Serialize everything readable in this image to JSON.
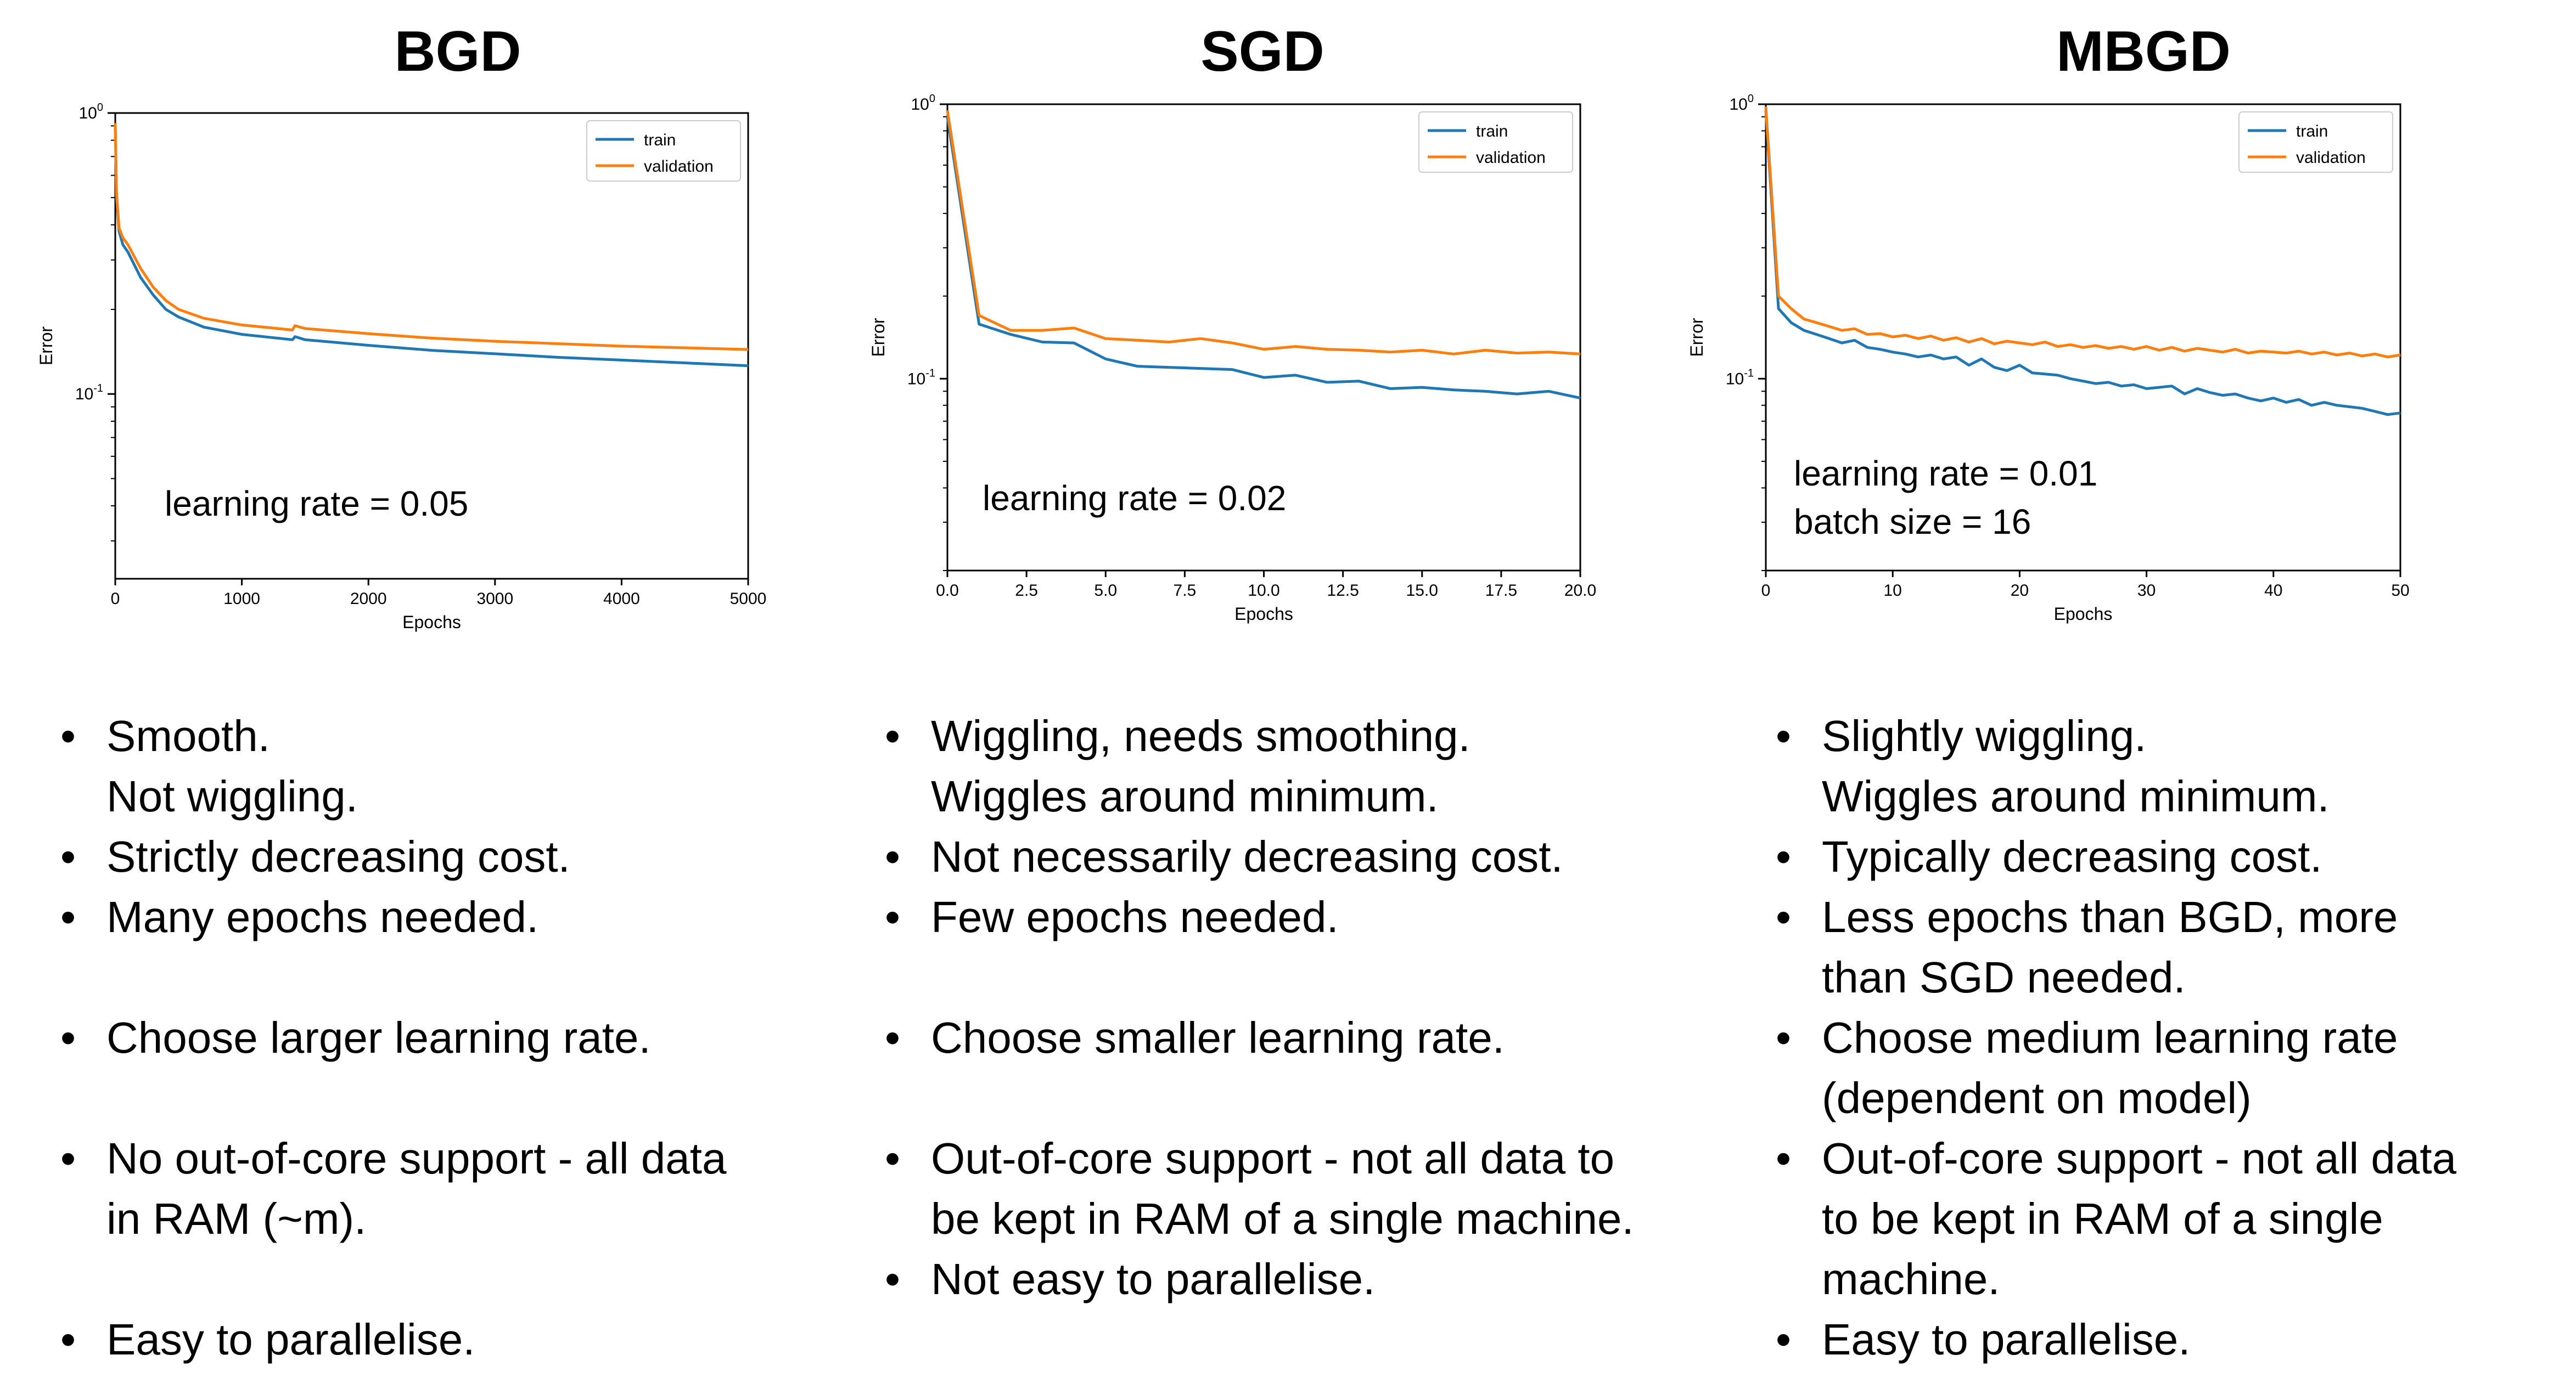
{
  "colors": {
    "train": "#1f77b4",
    "validation": "#ff7f0e"
  },
  "columns": [
    {
      "title": "BGD",
      "bullets": [
        {
          "text": "Smooth.\nNot wiggling.",
          "gap": false
        },
        {
          "text": "Strictly decreasing cost.",
          "gap": false
        },
        {
          "text": "Many epochs needed.",
          "gap": false
        },
        {
          "text": "Choose larger learning rate.",
          "gap": true
        },
        {
          "text": "No out-of-core support - all data\nin RAM (~m).",
          "gap": true
        },
        {
          "text": "Easy to parallelise.",
          "gap": true
        }
      ]
    },
    {
      "title": "SGD",
      "bullets": [
        {
          "text": "Wiggling, needs smoothing.\nWiggles around minimum.",
          "gap": false
        },
        {
          "text": "Not necessarily decreasing cost.",
          "gap": false
        },
        {
          "text": "Few epochs needed.",
          "gap": false
        },
        {
          "text": "Choose smaller learning rate.",
          "gap": true
        },
        {
          "text": "Out-of-core support - not all data to\nbe kept in RAM of a single machine.",
          "gap": true
        },
        {
          "text": "Not easy to parallelise.",
          "gap": false
        }
      ]
    },
    {
      "title": "MBGD",
      "bullets": [
        {
          "text": "Slightly wiggling.\nWiggles around minimum.",
          "gap": false
        },
        {
          "text": "Typically decreasing cost.",
          "gap": false
        },
        {
          "text": "Less epochs than BGD, more\nthan SGD needed.",
          "gap": false
        },
        {
          "text": "Choose medium learning rate\n(dependent on model)",
          "gap": false
        },
        {
          "text": "Out-of-core support - not all data\nto be kept in RAM of a single\nmachine.",
          "gap": false
        },
        {
          "text": "Easy to parallelise.",
          "gap": false
        }
      ]
    }
  ],
  "chart_data": [
    {
      "type": "line",
      "xlabel": "Epochs",
      "ylabel": "Error",
      "yscale": "log",
      "xlim": [
        0,
        5000
      ],
      "ylim": [
        0.022,
        1.0
      ],
      "xticks": [
        0,
        1000,
        2000,
        3000,
        4000,
        5000
      ],
      "xtick_labels": [
        "0",
        "1000",
        "2000",
        "3000",
        "4000",
        "5000"
      ],
      "ytick_labels": [
        "10^0",
        "10^-1"
      ],
      "legend": "top-right",
      "annotation": "learning rate = 0.05",
      "series": [
        {
          "name": "train",
          "x": [
            0,
            10,
            30,
            60,
            100,
            200,
            300,
            400,
            500,
            700,
            1000,
            1400,
            1420,
            1500,
            2000,
            2500,
            3000,
            3500,
            4000,
            4500,
            5000
          ],
          "y": [
            0.9,
            0.5,
            0.38,
            0.34,
            0.32,
            0.26,
            0.225,
            0.2,
            0.188,
            0.173,
            0.163,
            0.156,
            0.16,
            0.156,
            0.149,
            0.143,
            0.139,
            0.135,
            0.132,
            0.129,
            0.126
          ]
        },
        {
          "name": "validation",
          "x": [
            0,
            10,
            30,
            60,
            100,
            200,
            300,
            400,
            500,
            700,
            1000,
            1400,
            1420,
            1500,
            2000,
            2500,
            3000,
            3500,
            4000,
            4500,
            5000
          ],
          "y": [
            0.92,
            0.52,
            0.39,
            0.36,
            0.34,
            0.28,
            0.24,
            0.215,
            0.2,
            0.186,
            0.176,
            0.169,
            0.175,
            0.171,
            0.164,
            0.158,
            0.154,
            0.151,
            0.148,
            0.146,
            0.144
          ]
        }
      ]
    },
    {
      "type": "line",
      "xlabel": "Epochs",
      "ylabel": "Error",
      "yscale": "log",
      "xlim": [
        0,
        20
      ],
      "ylim": [
        0.02,
        1.0
      ],
      "xticks": [
        0,
        2.5,
        5,
        7.5,
        10,
        12.5,
        15,
        17.5,
        20
      ],
      "xtick_labels": [
        "0.0",
        "2.5",
        "5.0",
        "7.5",
        "10.0",
        "12.5",
        "15.0",
        "17.5",
        "20.0"
      ],
      "ytick_labels": [
        "10^0",
        "10^-1"
      ],
      "legend": "top-right",
      "annotation": "learning rate = 0.02",
      "series": [
        {
          "name": "train",
          "x": [
            0,
            1,
            2,
            3,
            4,
            5,
            6,
            7,
            8,
            9,
            10,
            11,
            12,
            13,
            14,
            15,
            16,
            17,
            18,
            19,
            20
          ],
          "y": [
            0.9,
            0.158,
            0.145,
            0.136,
            0.135,
            0.118,
            0.111,
            0.11,
            0.109,
            0.108,
            0.101,
            0.103,
            0.097,
            0.098,
            0.092,
            0.093,
            0.091,
            0.09,
            0.088,
            0.09,
            0.085
          ]
        },
        {
          "name": "validation",
          "x": [
            0,
            1,
            2,
            3,
            4,
            5,
            6,
            7,
            8,
            9,
            10,
            11,
            12,
            13,
            14,
            15,
            16,
            17,
            18,
            19,
            20
          ],
          "y": [
            0.95,
            0.17,
            0.15,
            0.15,
            0.153,
            0.14,
            0.138,
            0.136,
            0.14,
            0.135,
            0.128,
            0.131,
            0.128,
            0.127,
            0.125,
            0.127,
            0.123,
            0.127,
            0.124,
            0.125,
            0.123
          ]
        }
      ]
    },
    {
      "type": "line",
      "xlabel": "Epochs",
      "ylabel": "Error",
      "yscale": "log",
      "xlim": [
        0,
        50
      ],
      "ylim": [
        0.02,
        1.0
      ],
      "xticks": [
        0,
        10,
        20,
        30,
        40,
        50
      ],
      "xtick_labels": [
        "0",
        "10",
        "20",
        "30",
        "40",
        "50"
      ],
      "ytick_labels": [
        "10^0",
        "10^-1"
      ],
      "legend": "top-right",
      "annotation": "learning rate = 0.01\nbatch size = 16",
      "series": [
        {
          "name": "train",
          "x": [
            0,
            1,
            2,
            3,
            4,
            5,
            6,
            7,
            8,
            9,
            10,
            11,
            12,
            13,
            14,
            15,
            16,
            17,
            18,
            19,
            20,
            21,
            22,
            23,
            24,
            25,
            26,
            27,
            28,
            29,
            30,
            31,
            32,
            33,
            34,
            35,
            36,
            37,
            38,
            39,
            40,
            41,
            42,
            43,
            44,
            45,
            46,
            47,
            48,
            49,
            50
          ],
          "y": [
            0.95,
            0.18,
            0.16,
            0.15,
            0.145,
            0.14,
            0.135,
            0.138,
            0.13,
            0.128,
            0.125,
            0.123,
            0.12,
            0.122,
            0.118,
            0.12,
            0.112,
            0.118,
            0.11,
            0.107,
            0.112,
            0.105,
            0.104,
            0.103,
            0.1,
            0.098,
            0.096,
            0.097,
            0.094,
            0.095,
            0.092,
            0.093,
            0.094,
            0.088,
            0.092,
            0.089,
            0.087,
            0.088,
            0.085,
            0.083,
            0.085,
            0.082,
            0.084,
            0.08,
            0.082,
            0.08,
            0.079,
            0.078,
            0.076,
            0.074,
            0.075
          ]
        },
        {
          "name": "validation",
          "x": [
            0,
            1,
            2,
            3,
            4,
            5,
            6,
            7,
            8,
            9,
            10,
            11,
            12,
            13,
            14,
            15,
            16,
            17,
            18,
            19,
            20,
            21,
            22,
            23,
            24,
            25,
            26,
            27,
            28,
            29,
            30,
            31,
            32,
            33,
            34,
            35,
            36,
            37,
            38,
            39,
            40,
            41,
            42,
            43,
            44,
            45,
            46,
            47,
            48,
            49,
            50
          ],
          "y": [
            0.98,
            0.2,
            0.18,
            0.165,
            0.16,
            0.155,
            0.15,
            0.152,
            0.145,
            0.146,
            0.142,
            0.144,
            0.14,
            0.143,
            0.138,
            0.141,
            0.136,
            0.14,
            0.134,
            0.137,
            0.135,
            0.133,
            0.136,
            0.131,
            0.133,
            0.13,
            0.132,
            0.129,
            0.131,
            0.128,
            0.131,
            0.127,
            0.13,
            0.126,
            0.129,
            0.127,
            0.125,
            0.128,
            0.124,
            0.126,
            0.125,
            0.124,
            0.126,
            0.123,
            0.125,
            0.122,
            0.124,
            0.121,
            0.123,
            0.12,
            0.122
          ]
        }
      ]
    }
  ]
}
